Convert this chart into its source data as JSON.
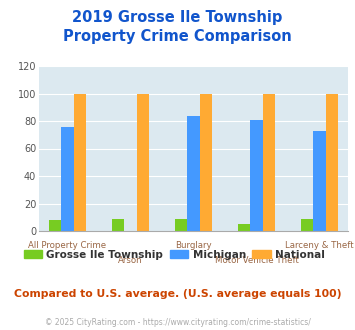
{
  "title": "2019 Grosse Ile Township\nProperty Crime Comparison",
  "categories": [
    "All Property Crime",
    "Arson",
    "Burglary",
    "Motor Vehicle Theft",
    "Larceny & Theft"
  ],
  "series": {
    "Grosse Ile Township": [
      8,
      9,
      9,
      5,
      9
    ],
    "Michigan": [
      76,
      0,
      84,
      81,
      73
    ],
    "National": [
      100,
      100,
      100,
      100,
      100
    ]
  },
  "colors": {
    "Grosse Ile Township": "#77cc22",
    "Michigan": "#4499ff",
    "National": "#ffaa33"
  },
  "ylim": [
    0,
    120
  ],
  "yticks": [
    0,
    20,
    40,
    60,
    80,
    100,
    120
  ],
  "bg_color": "#dce9f0",
  "title_color": "#1155cc",
  "axis_label_color": "#996644",
  "note_text": "Compared to U.S. average. (U.S. average equals 100)",
  "note_color": "#cc4400",
  "footer_text": "© 2025 CityRating.com - https://www.cityrating.com/crime-statistics/",
  "footer_color": "#aaaaaa",
  "footer_link_color": "#4499ff"
}
